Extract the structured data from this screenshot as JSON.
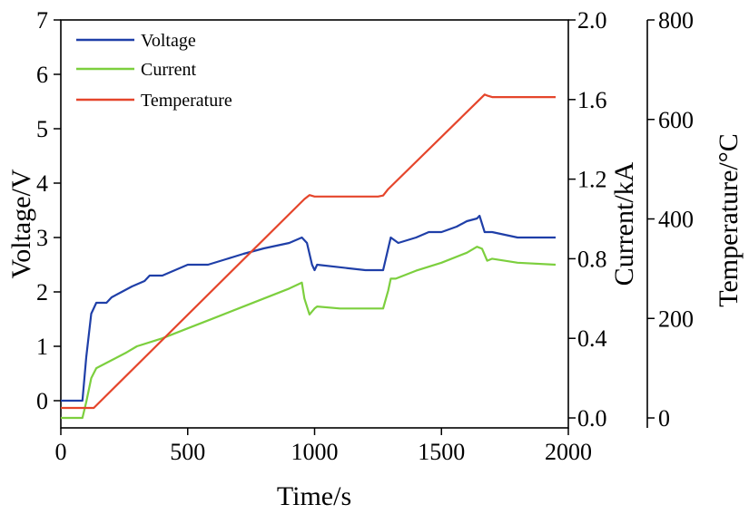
{
  "chart_data": {
    "type": "line",
    "xlabel": "Time/s",
    "ylabel_left": "Voltage/V",
    "ylabel_right_1": "Current/kA",
    "ylabel_right_2": "Temperature/°C",
    "xlim": [
      0,
      2000
    ],
    "ylim_left": [
      -0.5,
      7
    ],
    "ylim_right_1": [
      -0.05,
      2.0
    ],
    "ylim_right_2": [
      -20,
      800
    ],
    "x_ticks": [
      "0",
      "500",
      "1000",
      "1500",
      "2000"
    ],
    "y_ticks_left": [
      "0",
      "1",
      "2",
      "3",
      "4",
      "5",
      "6",
      "7"
    ],
    "y_ticks_right_1": [
      "0.0",
      "0.4",
      "0.8",
      "1.2",
      "1.6",
      "2.0"
    ],
    "y_ticks_right_2": [
      "0",
      "200",
      "400",
      "600",
      "800"
    ],
    "legend_position": "top-left",
    "grid": false,
    "series": [
      {
        "name": "Voltage",
        "axis": "left",
        "color": "#1f3fa8",
        "x": [
          0,
          85,
          100,
          120,
          140,
          180,
          200,
          240,
          280,
          330,
          350,
          400,
          500,
          580,
          650,
          720,
          800,
          900,
          950,
          970,
          990,
          1000,
          1010,
          1200,
          1270,
          1280,
          1300,
          1330,
          1400,
          1450,
          1500,
          1560,
          1600,
          1640,
          1650,
          1670,
          1700,
          1750,
          1800,
          1900,
          1950
        ],
        "y": [
          0.0,
          0.0,
          0.8,
          1.6,
          1.8,
          1.8,
          1.9,
          2.0,
          2.1,
          2.2,
          2.3,
          2.3,
          2.5,
          2.5,
          2.6,
          2.7,
          2.8,
          2.9,
          3.0,
          2.9,
          2.5,
          2.4,
          2.5,
          2.4,
          2.4,
          2.6,
          3.0,
          2.9,
          3.0,
          3.1,
          3.1,
          3.2,
          3.3,
          3.35,
          3.4,
          3.1,
          3.1,
          3.05,
          3.0,
          3.0,
          3.0
        ]
      },
      {
        "name": "Current",
        "axis": "right_1",
        "color": "#7ccf3e",
        "x": [
          0,
          85,
          100,
          120,
          140,
          200,
          260,
          300,
          400,
          500,
          600,
          700,
          800,
          900,
          950,
          960,
          980,
          1000,
          1010,
          1100,
          1270,
          1290,
          1300,
          1320,
          1400,
          1500,
          1600,
          1640,
          1660,
          1680,
          1700,
          1800,
          1950
        ],
        "y": [
          0.0,
          0.0,
          0.08,
          0.2,
          0.25,
          0.29,
          0.33,
          0.36,
          0.4,
          0.45,
          0.5,
          0.55,
          0.6,
          0.65,
          0.68,
          0.6,
          0.52,
          0.55,
          0.56,
          0.55,
          0.55,
          0.64,
          0.7,
          0.7,
          0.74,
          0.78,
          0.83,
          0.86,
          0.85,
          0.79,
          0.8,
          0.78,
          0.77
        ]
      },
      {
        "name": "Temperature",
        "axis": "right_2",
        "color": "#e5452b",
        "x": [
          0,
          130,
          960,
          980,
          1000,
          1250,
          1270,
          1290,
          1650,
          1670,
          1680,
          1700,
          1950
        ],
        "y": [
          20,
          20,
          440,
          448,
          445,
          445,
          447,
          460,
          640,
          650,
          648,
          645,
          645
        ]
      }
    ]
  }
}
